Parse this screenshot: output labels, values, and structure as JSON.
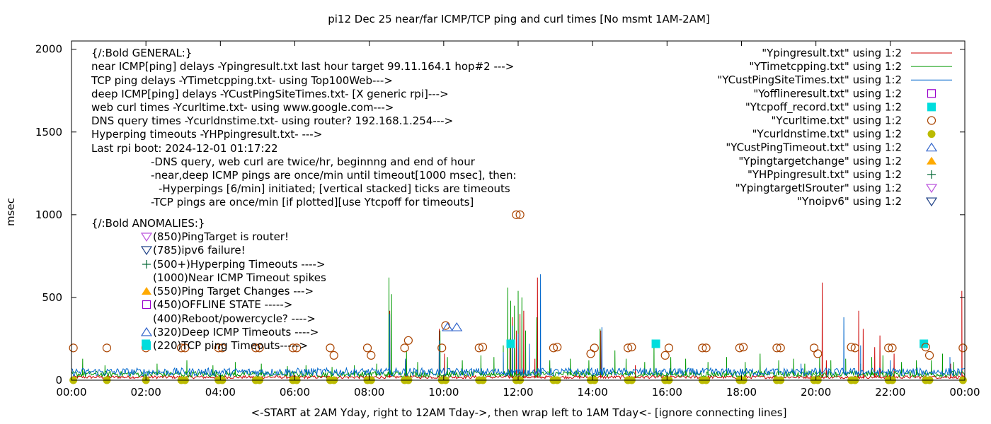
{
  "chart_data": {
    "type": "line",
    "title": "pi12 Dec 25  near/far ICMP/TCP ping and curl times [No msmt 1AM-2AM]",
    "ylabel": "msec",
    "xlabel": "<-START at 2AM Yday, right to 12AM Tday->, then wrap left to 1AM Tday<- [ignore connecting lines]",
    "xlim": [
      0,
      24
    ],
    "ylim": [
      0,
      2050
    ],
    "x_ticks": [
      {
        "x": 0,
        "label": "00:00"
      },
      {
        "x": 2,
        "label": "02:00"
      },
      {
        "x": 4,
        "label": "04:00"
      },
      {
        "x": 6,
        "label": "06:00"
      },
      {
        "x": 8,
        "label": "08:00"
      },
      {
        "x": 10,
        "label": "10:00"
      },
      {
        "x": 12,
        "label": "12:00"
      },
      {
        "x": 14,
        "label": "14:00"
      },
      {
        "x": 16,
        "label": "16:00"
      },
      {
        "x": 18,
        "label": "18:00"
      },
      {
        "x": 20,
        "label": "20:00"
      },
      {
        "x": 22,
        "label": "22:00"
      },
      {
        "x": 24,
        "label": "00:00"
      }
    ],
    "y_ticks": [
      {
        "y": 0,
        "label": "0"
      },
      {
        "y": 500,
        "label": "500"
      },
      {
        "y": 1000,
        "label": "1000"
      },
      {
        "y": 1500,
        "label": "1500"
      },
      {
        "y": 2000,
        "label": "2000"
      }
    ],
    "grid": false,
    "legend_position": "top-right",
    "legend": [
      {
        "label": "\"Ypingresult.txt\" using 1:2",
        "kind": "line",
        "color": "#cc0000"
      },
      {
        "label": "\"YTimetcpping.txt\" using 1:2",
        "kind": "line",
        "color": "#009900"
      },
      {
        "label": "\"YCustPingSiteTimes.txt\" using 1:2",
        "kind": "line",
        "color": "#0066cc"
      },
      {
        "label": "\"Yofflineresult.txt\" using 1:2",
        "kind": "open-square",
        "color": "#9900cc"
      },
      {
        "label": "\"Ytcpoff_record.txt\" using 1:2",
        "kind": "filled-square",
        "color": "#00dddd"
      },
      {
        "label": "\"Ycurltime.txt\" using 1:2",
        "kind": "open-circle",
        "color": "#aa4400"
      },
      {
        "label": "\"Ycurldnstime.txt\" using 1:2",
        "kind": "filled-circle",
        "color": "#bbbb00"
      },
      {
        "label": "\"YCustPingTimeout.txt\" using 1:2",
        "kind": "open-triangle-up",
        "color": "#3366cc"
      },
      {
        "label": "\"Ypingtargetchange\" using 1:2",
        "kind": "filled-triangle-up",
        "color": "#ffaa00"
      },
      {
        "label": "\"YHPpingresult.txt\" using 1:2",
        "kind": "plus",
        "color": "#006633"
      },
      {
        "label": "\"YpingtargetISrouter\" using 1:2",
        "kind": "open-triangle-down",
        "color": "#bb55dd"
      },
      {
        "label": "\"Ynoipv6\" using 1:2",
        "kind": "open-triangle-down",
        "color": "#224488"
      }
    ],
    "annotation_lines": [
      "{/:Bold GENERAL:}",
      "near ICMP[ping] delays -Ypingresult.txt last hour target 99.11.164.1 hop#2 --->",
      "TCP ping delays -YTimetcpping.txt- using Top100Web--->",
      "deep ICMP[ping] delays -YCustPingSiteTimes.txt- [X generic rpi]--->",
      "web curl times -Ycurltime.txt- using www.google.com--->",
      "DNS query times -Ycurldnstime.txt- using router? 192.168.1.254--->",
      "Hyperping timeouts -YHPpingresult.txt- --->",
      "Last rpi boot: 2024-12-01 01:17:22",
      "-DNS query, web curl are twice/hr, beginnng and end of hour",
      "-near,deep ICMP pings are once/min until timeout[1000 msec], then:",
      "-Hyperpings [6/min] initiated; [vertical stacked] ticks are timeouts",
      "-TCP pings are once/min [if plotted][use Ytcpoff for timeouts]",
      "{/:Bold ANOMALIES:}",
      "(850)PingTarget is router!",
      "(785)ipv6 failure!",
      "(500+)Hyperping Timeouts ---->",
      "(1000)Near ICMP Timeout spikes",
      "(550)Ping Target Changes --->",
      "(450)OFFLINE STATE ----->",
      "(400)Reboot/powercycle? ---->",
      "(320)Deep ICMP Timeouts ---->",
      "(220)TCP ping Timeouts----->"
    ],
    "series": [
      {
        "name": "\"Ypingresult.txt\" using 1:2",
        "kind": "line",
        "color": "#cc0000",
        "baseline": 15,
        "spikes": [
          [
            8.55,
            420
          ],
          [
            8.97,
            120
          ],
          [
            9.88,
            310
          ],
          [
            10.02,
            160
          ],
          [
            11.78,
            250
          ],
          [
            11.85,
            380
          ],
          [
            11.95,
            300
          ],
          [
            12.05,
            400
          ],
          [
            12.15,
            420
          ],
          [
            12.45,
            130
          ],
          [
            12.52,
            620
          ],
          [
            14.22,
            300
          ],
          [
            15.15,
            90
          ],
          [
            20.17,
            590
          ],
          [
            20.28,
            120
          ],
          [
            21.15,
            420
          ],
          [
            21.27,
            310
          ],
          [
            21.58,
            200
          ],
          [
            21.72,
            270
          ],
          [
            22.1,
            160
          ],
          [
            23.62,
            100
          ],
          [
            23.92,
            540
          ]
        ]
      },
      {
        "name": "\"YTimetcpping.txt\" using 1:2",
        "kind": "line",
        "color": "#009900",
        "baseline": 30,
        "spikes": [
          [
            0.3,
            130
          ],
          [
            0.9,
            90
          ],
          [
            2.3,
            100
          ],
          [
            3.1,
            120
          ],
          [
            3.8,
            90
          ],
          [
            4.4,
            110
          ],
          [
            5.1,
            100
          ],
          [
            5.8,
            85
          ],
          [
            6.3,
            90
          ],
          [
            7.0,
            80
          ],
          [
            7.6,
            90
          ],
          [
            8.2,
            100
          ],
          [
            8.53,
            620
          ],
          [
            8.6,
            520
          ],
          [
            9.0,
            180
          ],
          [
            9.3,
            110
          ],
          [
            9.9,
            300
          ],
          [
            10.1,
            140
          ],
          [
            10.5,
            120
          ],
          [
            11.0,
            150
          ],
          [
            11.35,
            140
          ],
          [
            11.6,
            210
          ],
          [
            11.72,
            560
          ],
          [
            11.8,
            480
          ],
          [
            11.9,
            450
          ],
          [
            12.0,
            540
          ],
          [
            12.1,
            500
          ],
          [
            12.2,
            300
          ],
          [
            12.5,
            380
          ],
          [
            12.85,
            120
          ],
          [
            13.4,
            130
          ],
          [
            13.9,
            120
          ],
          [
            14.2,
            310
          ],
          [
            14.6,
            180
          ],
          [
            14.9,
            130
          ],
          [
            15.4,
            110
          ],
          [
            15.65,
            230
          ],
          [
            16.1,
            140
          ],
          [
            16.5,
            130
          ],
          [
            17.1,
            110
          ],
          [
            17.6,
            140
          ],
          [
            18.1,
            110
          ],
          [
            18.5,
            160
          ],
          [
            19.0,
            120
          ],
          [
            19.4,
            130
          ],
          [
            19.7,
            100
          ],
          [
            20.1,
            140
          ],
          [
            20.4,
            120
          ],
          [
            20.8,
            130
          ],
          [
            21.2,
            100
          ],
          [
            21.5,
            140
          ],
          [
            21.8,
            150
          ],
          [
            22.3,
            110
          ],
          [
            22.7,
            120
          ],
          [
            23.1,
            120
          ],
          [
            23.4,
            160
          ],
          [
            23.7,
            110
          ]
        ]
      },
      {
        "name": "\"YCustPingSiteTimes.txt\" using 1:2",
        "kind": "line",
        "color": "#0066cc",
        "baseline": 40,
        "spikes": [
          [
            8.55,
            400
          ],
          [
            8.97,
            130
          ],
          [
            9.88,
            240
          ],
          [
            11.6,
            170
          ],
          [
            11.85,
            330
          ],
          [
            12.0,
            280
          ],
          [
            12.3,
            220
          ],
          [
            12.6,
            640
          ],
          [
            14.25,
            320
          ],
          [
            16.3,
            70
          ],
          [
            19.6,
            100
          ],
          [
            20.75,
            380
          ],
          [
            21.2,
            210
          ],
          [
            22.0,
            120
          ],
          [
            23.6,
            140
          ]
        ]
      },
      {
        "name": "\"Ytcpoff_record.txt\" using 1:2",
        "kind": "filled-square",
        "color": "#00dddd",
        "points": [
          [
            2.0,
            220
          ],
          [
            11.8,
            220
          ],
          [
            15.7,
            220
          ],
          [
            22.9,
            220
          ]
        ]
      },
      {
        "name": "\"Ycurltime.txt\" using 1:2",
        "kind": "open-circle",
        "color": "#aa4400",
        "points": [
          [
            0.05,
            195
          ],
          [
            0.95,
            195
          ],
          [
            2.0,
            195
          ],
          [
            2.95,
            195
          ],
          [
            3.05,
            195
          ],
          [
            3.95,
            195
          ],
          [
            4.05,
            195
          ],
          [
            4.95,
            195
          ],
          [
            5.05,
            195
          ],
          [
            5.95,
            195
          ],
          [
            6.05,
            195
          ],
          [
            6.95,
            195
          ],
          [
            7.05,
            150
          ],
          [
            7.95,
            195
          ],
          [
            8.05,
            150
          ],
          [
            8.95,
            195
          ],
          [
            9.05,
            240
          ],
          [
            9.95,
            195
          ],
          [
            10.05,
            330
          ],
          [
            10.95,
            195
          ],
          [
            11.05,
            200
          ],
          [
            11.95,
            1000
          ],
          [
            12.05,
            1000
          ],
          [
            12.95,
            195
          ],
          [
            13.05,
            200
          ],
          [
            13.95,
            160
          ],
          [
            14.05,
            195
          ],
          [
            14.95,
            195
          ],
          [
            15.05,
            200
          ],
          [
            15.95,
            150
          ],
          [
            16.05,
            195
          ],
          [
            16.95,
            195
          ],
          [
            17.05,
            195
          ],
          [
            17.95,
            195
          ],
          [
            18.05,
            200
          ],
          [
            18.95,
            195
          ],
          [
            19.05,
            195
          ],
          [
            19.95,
            195
          ],
          [
            20.05,
            160
          ],
          [
            20.95,
            200
          ],
          [
            21.05,
            195
          ],
          [
            21.95,
            195
          ],
          [
            22.05,
            195
          ],
          [
            22.95,
            200
          ],
          [
            23.05,
            150
          ],
          [
            23.95,
            195
          ]
        ]
      },
      {
        "name": "\"Ycurldnstime.txt\" using 1:2",
        "kind": "filled-circle",
        "color": "#bbbb00",
        "points": [
          [
            0.05,
            0
          ],
          [
            0.95,
            0
          ],
          [
            2.0,
            0
          ],
          [
            2.95,
            0
          ],
          [
            3.05,
            0
          ],
          [
            3.95,
            0
          ],
          [
            4.05,
            0
          ],
          [
            4.95,
            0
          ],
          [
            5.05,
            0
          ],
          [
            5.95,
            0
          ],
          [
            6.05,
            0
          ],
          [
            6.95,
            0
          ],
          [
            7.05,
            0
          ],
          [
            7.95,
            0
          ],
          [
            8.05,
            0
          ],
          [
            8.95,
            0
          ],
          [
            9.05,
            0
          ],
          [
            9.95,
            0
          ],
          [
            10.05,
            0
          ],
          [
            10.95,
            0
          ],
          [
            11.05,
            0
          ],
          [
            11.95,
            0
          ],
          [
            12.05,
            0
          ],
          [
            12.95,
            0
          ],
          [
            13.05,
            0
          ],
          [
            13.95,
            0
          ],
          [
            14.05,
            0
          ],
          [
            14.95,
            0
          ],
          [
            15.05,
            0
          ],
          [
            15.95,
            0
          ],
          [
            16.05,
            0
          ],
          [
            16.95,
            0
          ],
          [
            17.05,
            0
          ],
          [
            17.95,
            0
          ],
          [
            18.05,
            0
          ],
          [
            18.95,
            0
          ],
          [
            19.05,
            0
          ],
          [
            19.95,
            0
          ],
          [
            20.05,
            0
          ],
          [
            20.95,
            0
          ],
          [
            21.05,
            0
          ],
          [
            21.95,
            0
          ],
          [
            22.05,
            0
          ],
          [
            22.95,
            0
          ],
          [
            23.05,
            0
          ],
          [
            23.95,
            0
          ]
        ]
      },
      {
        "name": "\"YCustPingTimeout.txt\" using 1:2",
        "kind": "open-triangle-up",
        "color": "#3366cc",
        "points": [
          [
            10.1,
            320
          ],
          [
            10.35,
            320
          ]
        ]
      }
    ]
  }
}
